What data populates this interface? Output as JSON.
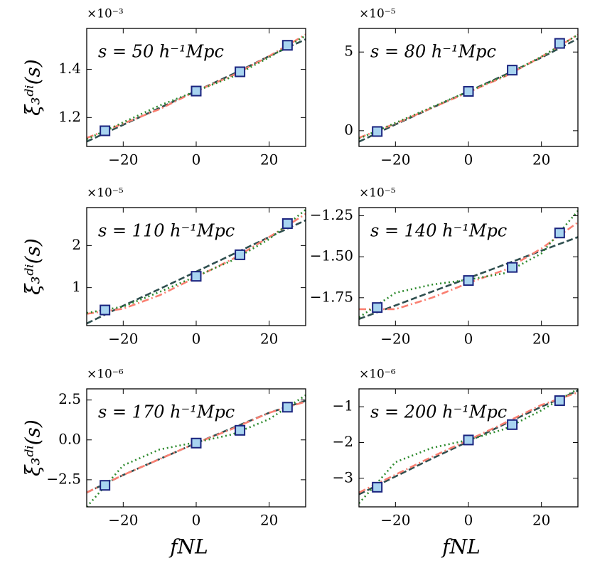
{
  "chart_data": [
    {
      "type": "line",
      "annotation": "s = 50 h⁻¹Mpc",
      "offset_label": "×10⁻³",
      "y_label": "ξ₃ᵈⁱ(s)",
      "x": [
        -30,
        -20,
        -10,
        0,
        10,
        20,
        30
      ],
      "xlim": [
        -30,
        30
      ],
      "xticks": [
        {
          "value": -20,
          "label": "−20"
        },
        0,
        20
      ],
      "ylim": [
        1.08,
        1.57
      ],
      "yticks": [
        1.2,
        1.4
      ],
      "series": [
        {
          "color": "#2f4f4f",
          "style": "dashed",
          "values": [
            1.1,
            1.17,
            1.24,
            1.31,
            1.38,
            1.455,
            1.525
          ]
        },
        {
          "color": "#fa8072",
          "style": "dashdot",
          "values": [
            1.115,
            1.175,
            1.235,
            1.31,
            1.375,
            1.455,
            1.545
          ]
        },
        {
          "color": "#2e8b2e",
          "style": "dotted",
          "values": [
            1.11,
            1.18,
            1.25,
            1.31,
            1.37,
            1.45,
            1.54
          ]
        }
      ],
      "points": {
        "color": "#a8d4f0",
        "edge_color": "#1a237e",
        "x": [
          -25,
          0,
          12,
          25
        ],
        "values": [
          1.145,
          1.31,
          1.39,
          1.5
        ]
      }
    },
    {
      "type": "line",
      "annotation": "s = 80 h⁻¹Mpc",
      "offset_label": "×10⁻⁵",
      "x": [
        -30,
        -20,
        -10,
        0,
        10,
        20,
        30
      ],
      "xlim": [
        -30,
        30
      ],
      "xticks": [
        {
          "value": -20,
          "label": "−20"
        },
        0,
        20
      ],
      "ylim": [
        -1.0,
        6.5
      ],
      "yticks": [
        0,
        5
      ],
      "series": [
        {
          "color": "#2f4f4f",
          "style": "dashed",
          "values": [
            -0.7,
            0.4,
            1.45,
            2.5,
            3.55,
            4.65,
            5.85
          ]
        },
        {
          "color": "#fa8072",
          "style": "dashdot",
          "values": [
            -0.45,
            0.45,
            1.45,
            2.45,
            3.45,
            4.7,
            6.1
          ]
        },
        {
          "color": "#2e8b2e",
          "style": "dotted",
          "values": [
            -0.5,
            0.5,
            1.5,
            2.5,
            3.5,
            4.7,
            6.1
          ]
        }
      ],
      "points": {
        "color": "#a8d4f0",
        "edge_color": "#1a237e",
        "x": [
          -25,
          0,
          12,
          25
        ],
        "values": [
          -0.05,
          2.5,
          3.85,
          5.55
        ]
      }
    },
    {
      "type": "line",
      "annotation": "s = 110 h⁻¹Mpc",
      "offset_label": "×10⁻⁵",
      "y_label": "ξ₃ᵈⁱ(s)",
      "x": [
        -30,
        -20,
        -10,
        0,
        10,
        20,
        30
      ],
      "xlim": [
        -30,
        30
      ],
      "xticks": [
        {
          "value": -20,
          "label": "−20"
        },
        0,
        20
      ],
      "ylim": [
        0.1,
        2.9
      ],
      "yticks": [
        1,
        2
      ],
      "series": [
        {
          "color": "#2f4f4f",
          "style": "dashed",
          "values": [
            0.15,
            0.57,
            0.97,
            1.38,
            1.79,
            2.2,
            2.6
          ]
        },
        {
          "color": "#fa8072",
          "style": "dashdot",
          "values": [
            0.38,
            0.5,
            0.82,
            1.25,
            1.68,
            2.2,
            2.75
          ]
        },
        {
          "color": "#2e8b2e",
          "style": "dotted",
          "values": [
            0.4,
            0.55,
            0.9,
            1.27,
            1.65,
            2.15,
            2.85
          ]
        }
      ],
      "points": {
        "color": "#a8d4f0",
        "edge_color": "#1a237e",
        "x": [
          -25,
          0,
          12,
          25
        ],
        "values": [
          0.47,
          1.27,
          1.78,
          2.52
        ]
      }
    },
    {
      "type": "line",
      "annotation": "s = 140 h⁻¹Mpc",
      "offset_label": "×10⁻⁵",
      "x": [
        -30,
        -20,
        -10,
        0,
        10,
        20,
        30
      ],
      "xlim": [
        -30,
        30
      ],
      "xticks": [
        {
          "value": -20,
          "label": "−20"
        },
        0,
        20
      ],
      "ylim": [
        -1.92,
        -1.2
      ],
      "yticks": [
        {
          "value": -1.75,
          "label": "−1.75"
        },
        {
          "value": -1.5,
          "label": "−1.50"
        },
        {
          "value": -1.25,
          "label": "−1.25"
        }
      ],
      "series": [
        {
          "color": "#2f4f4f",
          "style": "dashed",
          "values": [
            -1.88,
            -1.797,
            -1.713,
            -1.63,
            -1.547,
            -1.463,
            -1.38
          ]
        },
        {
          "color": "#fa8072",
          "style": "dashdot",
          "values": [
            -1.82,
            -1.82,
            -1.75,
            -1.66,
            -1.58,
            -1.45,
            -1.29
          ]
        },
        {
          "color": "#2e8b2e",
          "style": "dotted",
          "values": [
            -1.87,
            -1.72,
            -1.67,
            -1.64,
            -1.6,
            -1.48,
            -1.22
          ]
        }
      ],
      "points": {
        "color": "#a8d4f0",
        "edge_color": "#1a237e",
        "x": [
          -25,
          0,
          12,
          25
        ],
        "values": [
          -1.81,
          -1.645,
          -1.565,
          -1.355
        ]
      }
    },
    {
      "type": "line",
      "annotation": "s = 170 h⁻¹Mpc",
      "offset_label": "×10⁻⁶",
      "y_label": "ξ₃ᵈⁱ(s)",
      "x_label": "fNL",
      "x": [
        -30,
        -20,
        -10,
        0,
        10,
        20,
        30
      ],
      "xlim": [
        -30,
        30
      ],
      "xticks": [
        {
          "value": -20,
          "label": "−20"
        },
        0,
        20
      ],
      "ylim": [
        -4.2,
        3.2
      ],
      "yticks": [
        {
          "value": -2.5,
          "label": "−2.5"
        },
        {
          "value": 0,
          "label": "0.0"
        },
        2.5
      ],
      "series": [
        {
          "color": "#2f4f4f",
          "style": "dashed",
          "values": [
            -3.3,
            -2.2,
            -1.2,
            -0.2,
            0.75,
            1.7,
            2.45
          ]
        },
        {
          "color": "#fa8072",
          "style": "dashdot",
          "values": [
            -3.3,
            -2.2,
            -1.2,
            -0.2,
            0.7,
            1.7,
            2.4
          ]
        },
        {
          "color": "#2e8b2e",
          "style": "dotted",
          "values": [
            -4.2,
            -1.6,
            -0.6,
            -0.15,
            0.35,
            1.3,
            2.8
          ]
        }
      ],
      "points": {
        "color": "#a8d4f0",
        "edge_color": "#1a237e",
        "x": [
          -25,
          0,
          12,
          25
        ],
        "values": [
          -2.85,
          -0.2,
          0.6,
          2.05
        ]
      }
    },
    {
      "type": "line",
      "annotation": "s = 200 h⁻¹Mpc",
      "offset_label": "×10⁻⁶",
      "x_label": "fNL",
      "x": [
        -30,
        -20,
        -10,
        0,
        10,
        20,
        30
      ],
      "xlim": [
        -30,
        30
      ],
      "xticks": [
        {
          "value": -20,
          "label": "−20"
        },
        0,
        20
      ],
      "ylim": [
        -3.8,
        -0.5
      ],
      "yticks": [
        {
          "value": -3,
          "label": "−3"
        },
        {
          "value": -2,
          "label": "−2"
        },
        {
          "value": -1,
          "label": "−1"
        }
      ],
      "series": [
        {
          "color": "#2f4f4f",
          "style": "dashed",
          "values": [
            -3.45,
            -2.95,
            -2.45,
            -1.97,
            -1.48,
            -1.0,
            -0.55
          ]
        },
        {
          "color": "#fa8072",
          "style": "dashdot",
          "values": [
            -3.4,
            -2.9,
            -2.4,
            -1.93,
            -1.45,
            -0.95,
            -0.6
          ]
        },
        {
          "color": "#2e8b2e",
          "style": "dotted",
          "values": [
            -3.7,
            -2.55,
            -2.15,
            -1.93,
            -1.62,
            -1.1,
            -0.5
          ]
        }
      ],
      "points": {
        "color": "#a8d4f0",
        "edge_color": "#1a237e",
        "x": [
          -25,
          0,
          12,
          25
        ],
        "values": [
          -3.25,
          -1.93,
          -1.5,
          -0.83
        ]
      }
    }
  ]
}
